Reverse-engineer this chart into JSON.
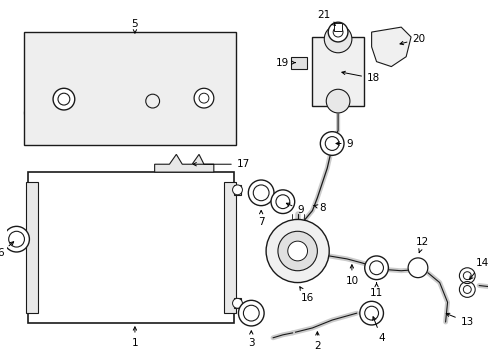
{
  "bg_color": "#ffffff",
  "line_color": "#1a1a1a",
  "fill_light": "#f5f5f5",
  "fill_gray": "#e0e0e0",
  "box_fill": "#eeeeee",
  "label_fontsize": 7.5
}
